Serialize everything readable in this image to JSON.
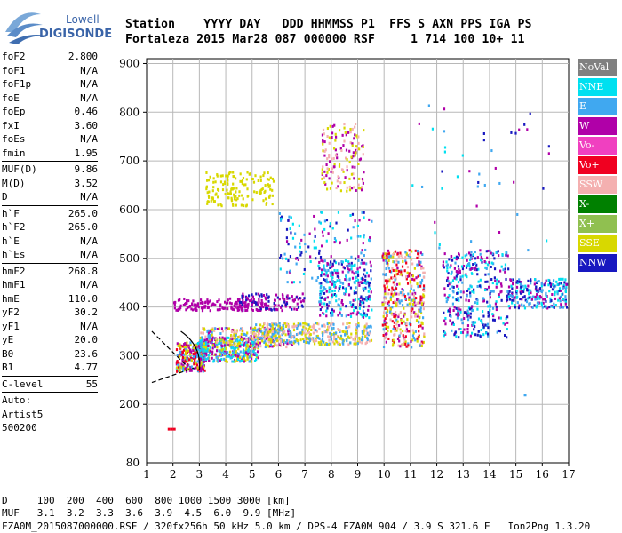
{
  "logo": {
    "line1": "Lowell",
    "line2": "DIGISONDE"
  },
  "header": {
    "labels": {
      "station": "Station",
      "date": "YYYY DAY",
      "doy": "DDD",
      "time": "HHMMSS",
      "p1": "P1",
      "ffs": "FFS",
      "s": "S",
      "axn": "AXN",
      "pps": "PPS",
      "iga": "IGA",
      "ps": "PS"
    },
    "values": {
      "station": "Fortaleza",
      "date": "2015 Mar28",
      "doy": "087",
      "time": "000000",
      "p1": "RSF",
      "ffs": "",
      "s": "1",
      "axn": "714",
      "pps": "100",
      "iga": "10+",
      "ps": "11"
    }
  },
  "params": {
    "group1": [
      {
        "name": "foF2",
        "value": "2.800"
      },
      {
        "name": "foF1",
        "value": "N/A"
      },
      {
        "name": "foF1p",
        "value": "N/A"
      },
      {
        "name": "foE",
        "value": "N/A"
      },
      {
        "name": "foEp",
        "value": "0.46"
      },
      {
        "name": "fxI",
        "value": "3.60"
      },
      {
        "name": "foEs",
        "value": "N/A"
      },
      {
        "name": "fmin",
        "value": "1.95"
      }
    ],
    "group2": [
      {
        "name": "MUF(D)",
        "value": "9.86"
      },
      {
        "name": "M(D)",
        "value": "3.52"
      },
      {
        "name": "D",
        "value": "N/A"
      }
    ],
    "group3": [
      {
        "name": "h`F",
        "value": "265.0"
      },
      {
        "name": "h`F2",
        "value": "265.0"
      },
      {
        "name": "h`E",
        "value": "N/A"
      },
      {
        "name": "h`Es",
        "value": "N/A"
      }
    ],
    "group4": [
      {
        "name": "hmF2",
        "value": "268.8"
      },
      {
        "name": "hmF1",
        "value": "N/A"
      },
      {
        "name": "hmE",
        "value": "110.0"
      },
      {
        "name": "yF2",
        "value": "30.2"
      },
      {
        "name": "yF1",
        "value": "N/A"
      },
      {
        "name": "yE",
        "value": "20.0"
      },
      {
        "name": "B0",
        "value": "23.6"
      },
      {
        "name": "B1",
        "value": "4.77"
      }
    ],
    "clevel": {
      "name": "C-level",
      "value": "55"
    },
    "auto": {
      "line1": "Auto:",
      "line2": "Artist5",
      "line3": "500200"
    }
  },
  "legend": [
    {
      "label": "NoVal",
      "color": "#808080"
    },
    {
      "label": "NNE",
      "color": "#00e0f0"
    },
    {
      "label": "E",
      "color": "#40a8f0"
    },
    {
      "label": "W",
      "color": "#b000a8"
    },
    {
      "label": "Vo-",
      "color": "#f040c0"
    },
    {
      "label": "Vo+",
      "color": "#f00020"
    },
    {
      "label": "SSW",
      "color": "#f4b0b0"
    },
    {
      "label": "X-",
      "color": "#008000"
    },
    {
      "label": "X+",
      "color": "#90c050"
    },
    {
      "label": "SSE",
      "color": "#d8d800"
    },
    {
      "label": "NNW",
      "color": "#1818c0"
    }
  ],
  "footer": {
    "d_label": "D",
    "d_values": "100  200  400  600  800 1000 1500 3000 [km]",
    "muf_label": "MUF",
    "muf_values": "3.1  3.2  3.3  3.6  3.9  4.5  6.0  9.9 [MHz]",
    "file_line": "FZA0M_2015087000000.RSF / 320fx256h 50 kHz 5.0 km / DPS-4 FZA0M 904 / 3.9 S 321.6 E   Ion2Png 1.3.20"
  },
  "chart_data": {
    "type": "scatter",
    "x_ticks": [
      1,
      2,
      3,
      4,
      5,
      6,
      7,
      8,
      9,
      10,
      11,
      12,
      13,
      14,
      15,
      16,
      17
    ],
    "y_ticks": [
      200,
      300,
      400,
      500,
      600,
      700,
      800,
      900
    ],
    "xlim": [
      1,
      17
    ],
    "ylim": [
      80,
      910
    ],
    "grid": true,
    "legend_position": "right",
    "clusters": [
      {
        "x": [
          2.1,
          3.2
        ],
        "y": [
          270,
          330
        ],
        "colors": [
          "#d8d800",
          "#f00020",
          "#b000a8",
          "#40a8f0"
        ],
        "n": 260
      },
      {
        "x": [
          2.9,
          5.2
        ],
        "y": [
          290,
          340
        ],
        "colors": [
          "#40a8f0",
          "#00e0f0",
          "#d8d800",
          "#b000a8"
        ],
        "n": 360
      },
      {
        "x": [
          3.0,
          6.5
        ],
        "y": [
          320,
          360
        ],
        "colors": [
          "#d8d800",
          "#40a8f0",
          "#b000a8",
          "#f4b0b0"
        ],
        "n": 260
      },
      {
        "x": [
          5.0,
          9.5
        ],
        "y": [
          325,
          370
        ],
        "colors": [
          "#d8d800",
          "#f4b0b0",
          "#40a8f0"
        ],
        "n": 360
      },
      {
        "x": [
          2.0,
          5.5
        ],
        "y": [
          395,
          420
        ],
        "colors": [
          "#b000a8"
        ],
        "n": 160
      },
      {
        "x": [
          4.5,
          7.0
        ],
        "y": [
          395,
          430
        ],
        "colors": [
          "#b000a8",
          "#1818c0"
        ],
        "n": 110
      },
      {
        "x": [
          7.5,
          9.5
        ],
        "y": [
          380,
          500
        ],
        "colors": [
          "#1818c0",
          "#40a8f0",
          "#b000a8",
          "#00e0f0"
        ],
        "n": 260
      },
      {
        "x": [
          9.9,
          11.5
        ],
        "y": [
          320,
          520
        ],
        "colors": [
          "#f00020",
          "#d8d800",
          "#b000a8",
          "#40a8f0",
          "#f4b0b0"
        ],
        "n": 420
      },
      {
        "x": [
          12.2,
          14.7
        ],
        "y": [
          340,
          520
        ],
        "colors": [
          "#40a8f0",
          "#1818c0",
          "#b000a8",
          "#00e0f0"
        ],
        "n": 360
      },
      {
        "x": [
          14.7,
          16.9
        ],
        "y": [
          400,
          460
        ],
        "colors": [
          "#40a8f0",
          "#b000a8",
          "#00e0f0",
          "#1818c0"
        ],
        "n": 220
      },
      {
        "x": [
          3.2,
          5.8
        ],
        "y": [
          610,
          680
        ],
        "colors": [
          "#d8d800"
        ],
        "n": 150
      },
      {
        "x": [
          7.6,
          9.2
        ],
        "y": [
          640,
          780
        ],
        "colors": [
          "#d8d800",
          "#f4b0b0",
          "#b000a8"
        ],
        "n": 150
      },
      {
        "x": [
          6.0,
          9.5
        ],
        "y": [
          450,
          600
        ],
        "colors": [
          "#1818c0",
          "#b000a8",
          "#00e0f0",
          "#40a8f0"
        ],
        "n": 150
      },
      {
        "x": [
          11.0,
          16.5
        ],
        "y": [
          500,
          820
        ],
        "colors": [
          "#00e0f0",
          "#1818c0",
          "#b000a8",
          "#40a8f0"
        ],
        "n": 45
      }
    ],
    "points": [
      {
        "x": 1.8,
        "y": 150,
        "color": "#f00020"
      },
      {
        "x": 1.9,
        "y": 150,
        "color": "#f00020"
      },
      {
        "x": 2.0,
        "y": 150,
        "color": "#f00020"
      },
      {
        "x": 15.3,
        "y": 220,
        "color": "#40a8f0"
      }
    ],
    "trace_line": {
      "x": [
        1.2,
        2.8
      ],
      "y": [
        245,
        275
      ]
    },
    "trace_upper": {
      "x": [
        1.2,
        2.5
      ],
      "y": [
        350,
        280
      ]
    },
    "trace_arc": {
      "x": [
        2.3,
        3.1,
        3.0
      ],
      "y": [
        350,
        320,
        270
      ]
    }
  }
}
